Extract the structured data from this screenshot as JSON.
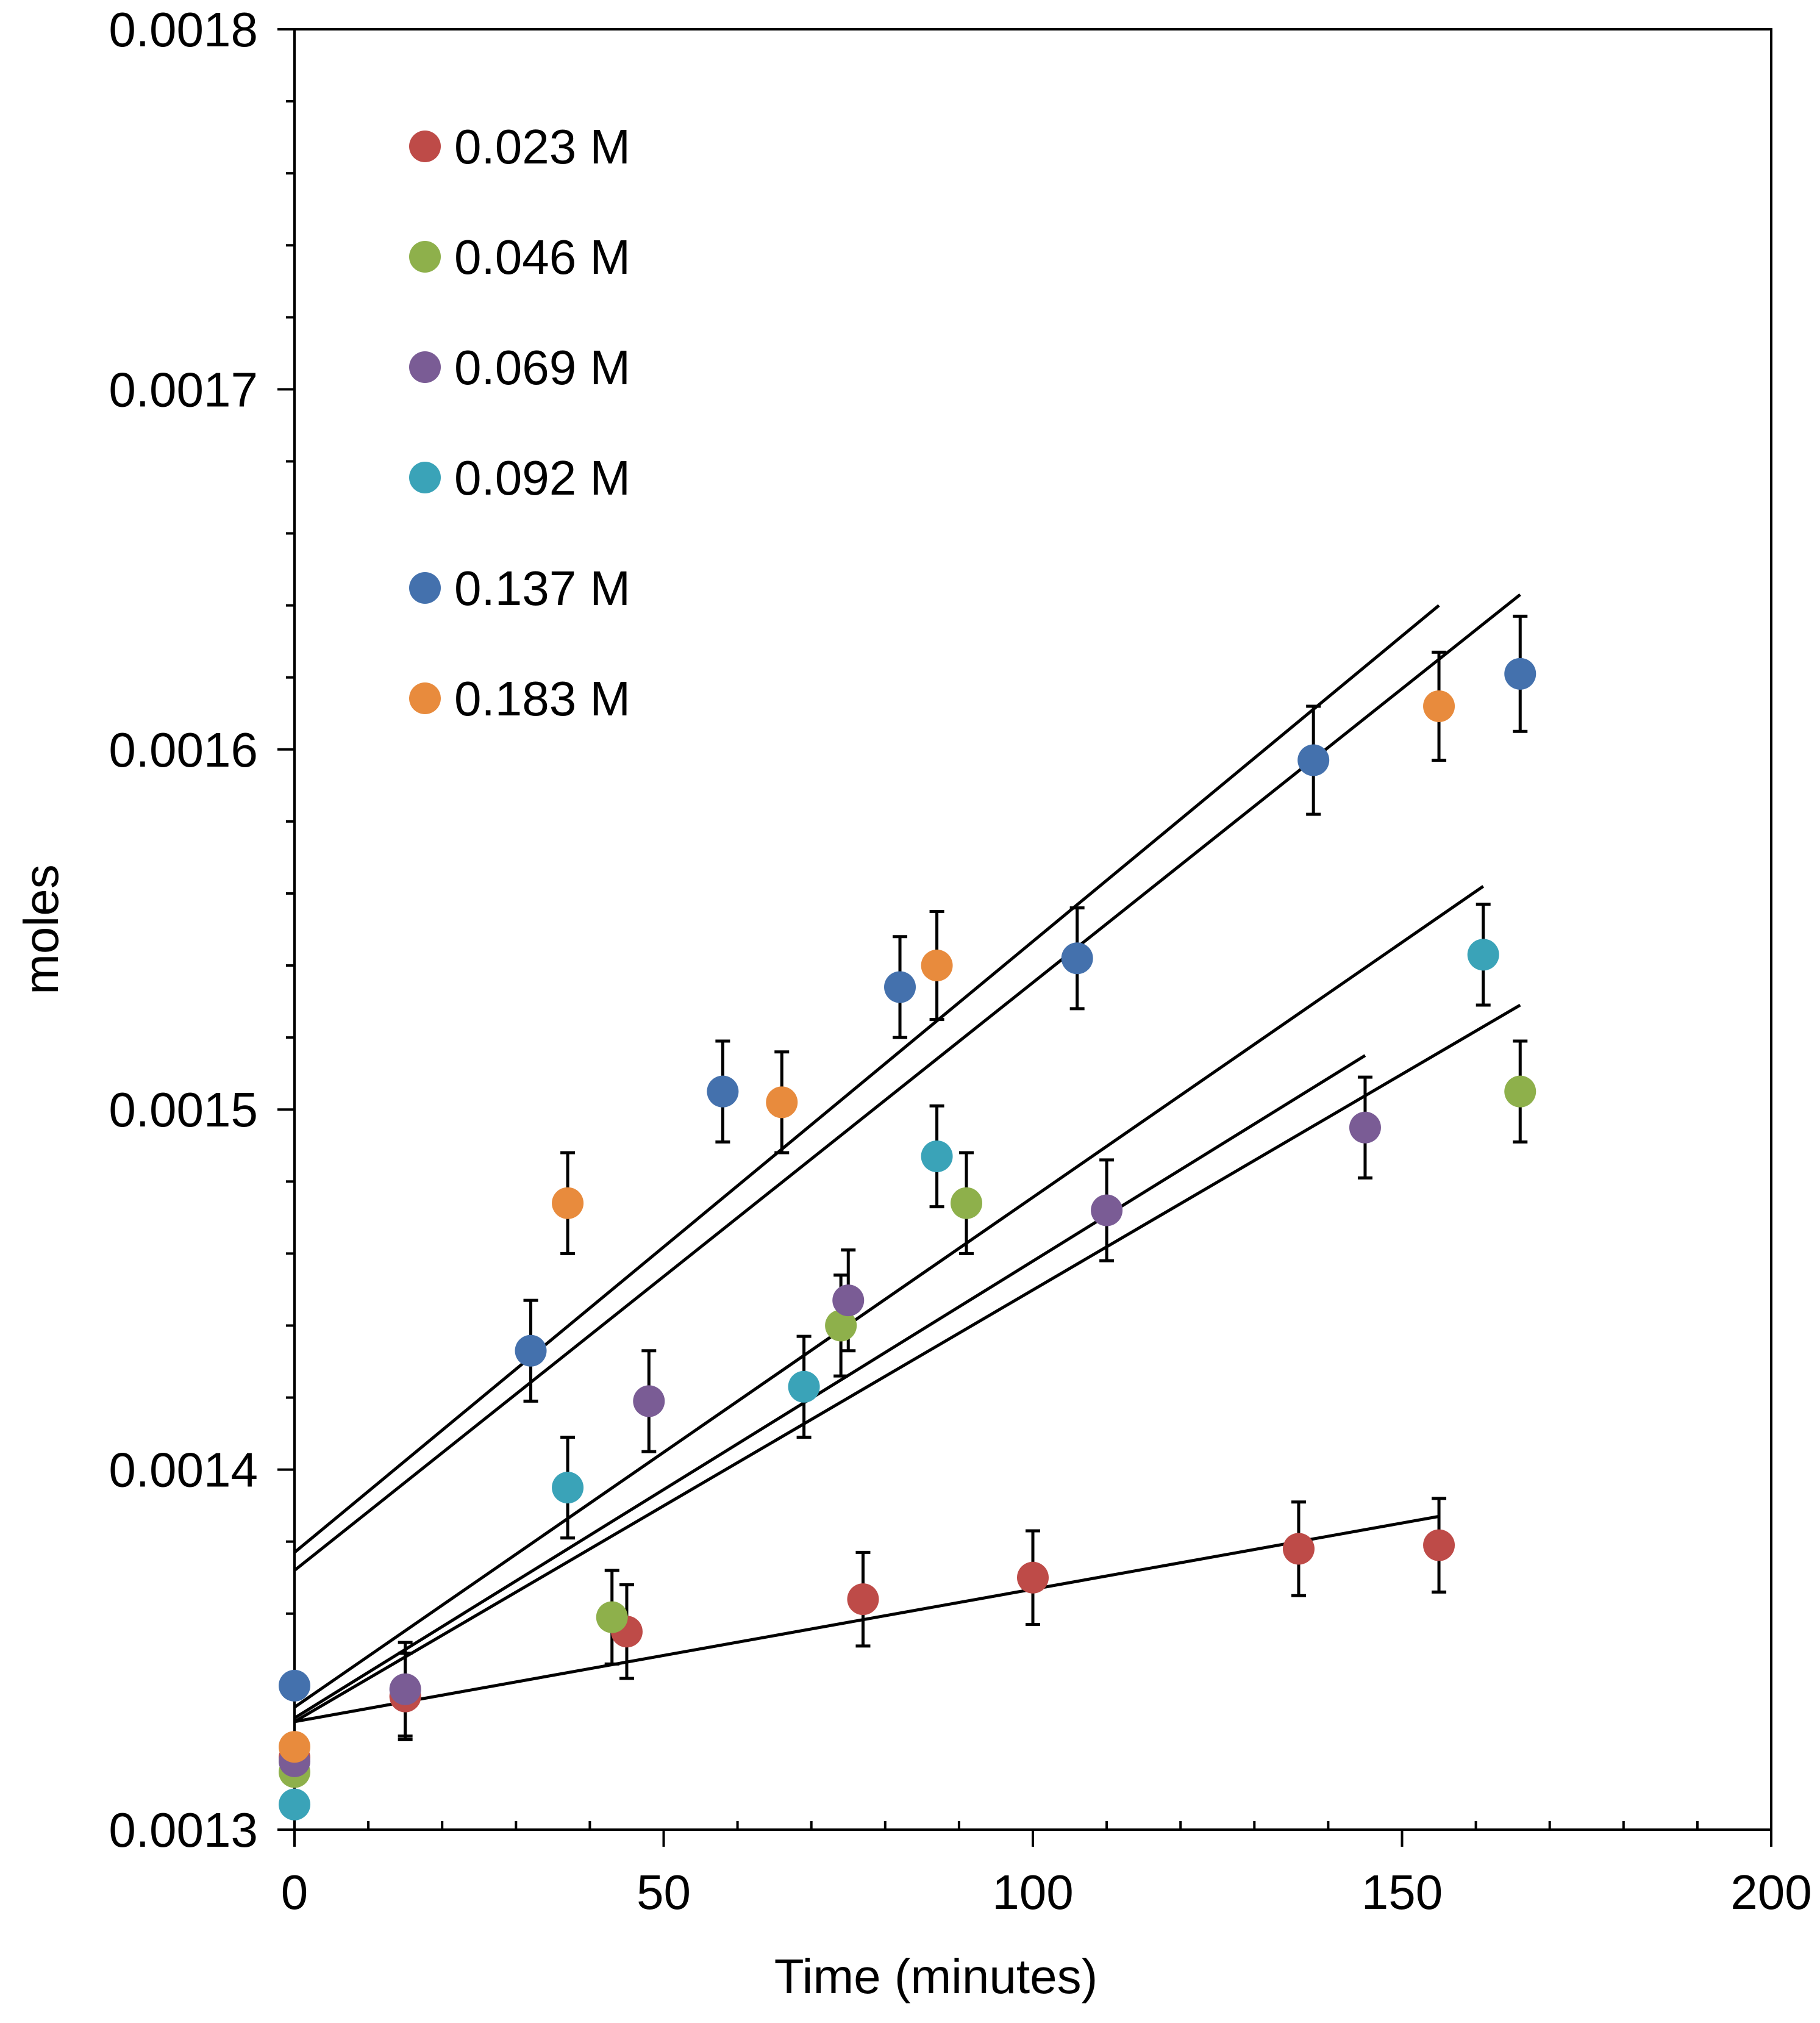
{
  "chart_data": {
    "type": "scatter",
    "title": "",
    "xlabel": "Time (minutes)",
    "ylabel": "moles",
    "xlim": [
      0,
      200
    ],
    "ylim": [
      0.0013,
      0.0018
    ],
    "x_ticks": [
      0,
      50,
      100,
      150,
      200
    ],
    "x_tick_labels": [
      "0",
      "50",
      "100",
      "150",
      "200"
    ],
    "y_ticks": [
      0.0013,
      0.0014,
      0.0015,
      0.0016,
      0.0017,
      0.0018
    ],
    "y_tick_labels": [
      "0.0013",
      "0.0014",
      "0.0015",
      "0.0016",
      "0.0017",
      "0.0018"
    ],
    "x_minor_step": 10,
    "y_minor_step": 2e-05,
    "grid": false,
    "legend_position": "top-left",
    "series": [
      {
        "name": "0.023 M",
        "color": "#be4b48",
        "x": [
          0,
          15,
          45,
          77,
          100,
          136,
          155
        ],
        "y": [
          0.00132,
          0.001337,
          0.001355,
          0.001364,
          0.00137,
          0.001378,
          0.001379
        ],
        "error": [
          0,
          1.2e-05,
          1.3e-05,
          1.3e-05,
          1.3e-05,
          1.3e-05,
          1.3e-05
        ],
        "fit": {
          "x": [
            0,
            155
          ],
          "y": [
            0.00133,
            0.001387
          ]
        }
      },
      {
        "name": "0.046 M",
        "color": "#8eb04b",
        "x": [
          0,
          43,
          74,
          91,
          166
        ],
        "y": [
          0.001316,
          0.001359,
          0.00144,
          0.001474,
          0.001505
        ],
        "error": [
          0,
          1.3e-05,
          1.4e-05,
          1.4e-05,
          1.4e-05
        ],
        "fit": {
          "x": [
            0,
            166
          ],
          "y": [
            0.00133,
            0.001529
          ]
        }
      },
      {
        "name": "0.069 M",
        "color": "#7a5c95",
        "x": [
          0,
          15,
          48,
          75,
          110,
          145
        ],
        "y": [
          0.001319,
          0.001339,
          0.001419,
          0.001447,
          0.001472,
          0.001495
        ],
        "error": [
          0,
          1.3e-05,
          1.4e-05,
          1.4e-05,
          1.4e-05,
          1.4e-05
        ],
        "fit": {
          "x": [
            0,
            145
          ],
          "y": [
            0.001331,
            0.001515
          ]
        }
      },
      {
        "name": "0.092 M",
        "color": "#3aa3b8",
        "x": [
          0,
          37,
          69,
          87,
          161
        ],
        "y": [
          0.001307,
          0.001395,
          0.001423,
          0.001487,
          0.001543
        ],
        "error": [
          0,
          1.4e-05,
          1.4e-05,
          1.4e-05,
          1.4e-05
        ],
        "fit": {
          "x": [
            0,
            161
          ],
          "y": [
            0.001334,
            0.001562
          ]
        }
      },
      {
        "name": "0.137 M",
        "color": "#4471ad",
        "x": [
          0,
          32,
          58,
          82,
          106,
          138,
          166
        ],
        "y": [
          0.00134,
          0.001433,
          0.001505,
          0.001534,
          0.001542,
          0.001597,
          0.001621
        ],
        "error": [
          0,
          1.4e-05,
          1.4e-05,
          1.4e-05,
          1.4e-05,
          1.5e-05,
          1.6e-05
        ],
        "fit": {
          "x": [
            0,
            166
          ],
          "y": [
            0.001372,
            0.001643
          ]
        }
      },
      {
        "name": "0.183 M",
        "color": "#e88b3d",
        "x": [
          0,
          37,
          66,
          87,
          155
        ],
        "y": [
          0.001323,
          0.001474,
          0.001502,
          0.00154,
          0.001612
        ],
        "error": [
          0,
          1.4e-05,
          1.4e-05,
          1.5e-05,
          1.5e-05
        ],
        "fit": {
          "x": [
            0,
            155
          ],
          "y": [
            0.001377,
            0.00164
          ]
        }
      }
    ]
  }
}
